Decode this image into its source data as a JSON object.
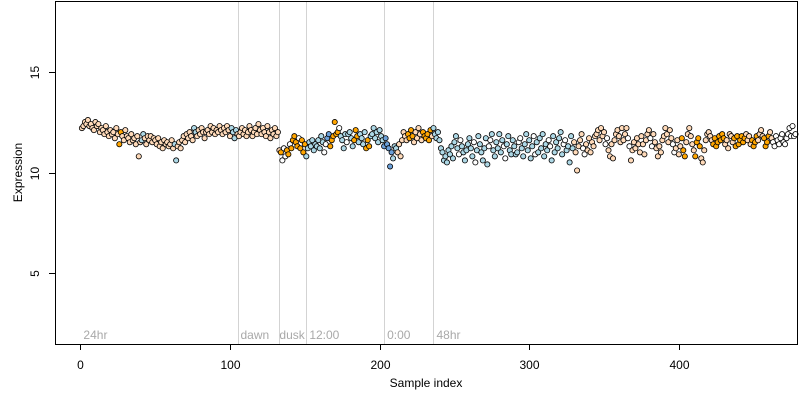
{
  "chart_data": {
    "type": "scatter",
    "title": "",
    "xlabel": "Sample index",
    "ylabel": "Expression",
    "xlim": [
      -17,
      479
    ],
    "ylim": [
      1.5,
      18.5
    ],
    "x_ticks": [
      0,
      100,
      200,
      300,
      400
    ],
    "y_ticks": [
      5,
      10,
      15
    ],
    "grid": false,
    "legend": "none",
    "colors": {
      "frame": "#000000",
      "marker_edge": "#000000",
      "boundary_line": "#d3d3d3",
      "region_label": "#a9a9a9",
      "peach": "#ffdab9",
      "orange": "#ffa500",
      "light_blue": "#add8e6",
      "steel_blue": "#6a9fd8",
      "white": "#ffffff"
    },
    "boundaries": [
      105,
      133,
      151,
      203,
      236
    ],
    "region_labels": [
      {
        "text": "24hr",
        "x": 2
      },
      {
        "text": "dawn",
        "x": 107
      },
      {
        "text": "dusk",
        "x": 133
      },
      {
        "text": "12:00",
        "x": 153
      },
      {
        "text": "0:00",
        "x": 205
      },
      {
        "text": "48hr",
        "x": 238
      }
    ],
    "points": {
      "x_start": 1,
      "x_step": 1,
      "y": [
        12.2,
        12.3,
        12.5,
        12.4,
        12.6,
        12.3,
        12.4,
        12.2,
        12.1,
        12.5,
        12.3,
        12.4,
        12.0,
        12.2,
        12.1,
        11.9,
        12.3,
        12.0,
        11.8,
        12.1,
        11.9,
        12.0,
        11.7,
        12.2,
        11.9,
        11.4,
        12.0,
        11.8,
        11.6,
        12.1,
        11.8,
        11.7,
        11.5,
        11.9,
        11.6,
        11.7,
        11.4,
        11.8,
        10.8,
        11.5,
        11.6,
        11.9,
        11.7,
        11.4,
        11.8,
        11.6,
        11.8,
        11.5,
        11.7,
        11.6,
        11.4,
        11.7,
        11.3,
        11.5,
        11.2,
        11.6,
        11.4,
        11.5,
        11.3,
        11.4,
        11.6,
        11.2,
        11.4,
        10.6,
        11.3,
        11.5,
        11.2,
        11.6,
        11.8,
        11.5,
        11.9,
        11.7,
        12.0,
        11.8,
        11.6,
        12.2,
        12.0,
        11.8,
        12.1,
        11.9,
        12.2,
        12.0,
        11.7,
        12.0,
        12.1,
        11.9,
        12.3,
        12.0,
        12.2,
        11.9,
        12.1,
        12.0,
        12.3,
        12.1,
        11.9,
        12.2,
        12.0,
        12.3,
        12.1,
        11.8,
        12.2,
        12.0,
        11.7,
        12.1,
        11.9,
        11.8,
        12.0,
        12.2,
        11.9,
        12.1,
        11.8,
        12.0,
        12.3,
        12.1,
        11.8,
        12.0,
        12.2,
        11.9,
        12.4,
        12.1,
        11.9,
        12.2,
        12.0,
        11.8,
        12.3,
        12.0,
        11.7,
        12.1,
        11.9,
        12.2,
        11.8,
        12.0,
        11.1,
        11.0,
        10.6,
        11.2,
        10.8,
        11.1,
        10.9,
        11.4,
        11.2,
        11.6,
        11.8,
        11.5,
        11.3,
        11.7,
        11.2,
        11.6,
        11.0,
        11.4,
        10.8,
        11.2,
        11.5,
        11.3,
        11.6,
        11.1,
        11.4,
        11.3,
        11.6,
        11.2,
        11.8,
        11.5,
        11.0,
        11.4,
        11.7,
        11.9,
        11.3,
        11.6,
        11.8,
        12.5,
        11.9,
        12.0,
        12.2,
        11.8,
        11.6,
        11.2,
        11.9,
        11.5,
        11.9,
        12.0,
        11.7,
        11.3,
        11.6,
        12.1,
        11.8,
        11.5,
        11.9,
        11.7,
        11.4,
        12.0,
        11.2,
        11.6,
        11.3,
        11.8,
        11.9,
        12.2,
        11.7,
        12.0,
        11.5,
        12.1,
        11.8,
        11.6,
        11.3,
        11.7,
        11.4,
        11.2,
        10.3,
        11.0,
        10.7,
        11.3,
        11.2,
        11.0,
        11.4,
        10.8,
        11.6,
        12.0,
        11.8,
        11.6,
        11.9,
        11.7,
        12.1,
        11.8,
        11.5,
        12.0,
        11.7,
        12.2,
        11.9,
        11.6,
        12.0,
        11.8,
        11.7,
        11.9,
        11.6,
        12.1,
        11.8,
        12.2,
        11.9,
        11.7,
        12.0,
        11.6,
        11.2,
        11.0,
        10.6,
        10.8,
        10.5,
        11.1,
        10.9,
        11.3,
        10.7,
        11.5,
        11.8,
        11.2,
        10.9,
        11.6,
        11.3,
        11.0,
        10.6,
        11.1,
        11.4,
        11.7,
        11.2,
        10.8,
        11.5,
        10.5,
        11.1,
        11.8,
        11.4,
        11.0,
        10.6,
        11.2,
        11.7,
        10.4,
        11.3,
        11.6,
        11.9,
        11.1,
        10.8,
        11.5,
        11.2,
        11.9,
        11.0,
        11.6,
        11.3,
        10.7,
        11.4,
        11.8,
        11.1,
        10.9,
        11.6,
        11.3,
        10.9,
        11.0,
        11.5,
        11.7,
        11.2,
        10.8,
        11.4,
        11.9,
        11.1,
        11.6,
        10.7,
        11.3,
        11.8,
        10.9,
        11.5,
        11.0,
        11.7,
        11.2,
        11.9,
        10.8,
        11.4,
        11.1,
        11.6,
        11.3,
        10.6,
        11.8,
        11.0,
        11.5,
        11.2,
        11.7,
        12.0,
        10.9,
        11.4,
        11.6,
        11.1,
        11.3,
        10.5,
        11.8,
        11.2,
        11.5,
        11.0,
        10.1,
        11.3,
        11.6,
        11.9,
        11.2,
        10.9,
        11.4,
        11.1,
        11.7,
        11.0,
        11.5,
        11.3,
        11.8,
        11.9,
        12.1,
        11.6,
        12.2,
        11.8,
        12.0,
        11.4,
        11.7,
        11.1,
        10.8,
        11.4,
        10.7,
        11.6,
        11.9,
        12.1,
        11.8,
        11.5,
        12.2,
        11.6,
        11.9,
        12.2,
        11.7,
        11.3,
        10.6,
        11.1,
        11.5,
        11.2,
        11.7,
        11.4,
        11.0,
        11.8,
        11.4,
        10.9,
        11.6,
        11.9,
        12.1,
        11.7,
        11.3,
        11.9,
        11.5,
        11.2,
        10.8,
        11.3,
        11.0,
        11.6,
        11.8,
        12.2,
        11.9,
        11.5,
        12.1,
        11.7,
        11.4,
        11.0,
        11.2,
        11.6,
        10.9,
        11.3,
        11.7,
        11.1,
        10.8,
        11.5,
        11.9,
        12.2,
        11.8,
        11.4,
        11.1,
        10.8,
        11.5,
        11.7,
        11.3,
        10.7,
        10.5,
        11.1,
        11.6,
        11.9,
        12.0,
        11.8,
        11.6,
        11.4,
        11.7,
        11.3,
        11.5,
        11.8,
        11.6,
        11.9,
        11.7,
        11.4,
        11.6,
        11.2,
        11.9,
        11.8,
        11.5,
        11.7,
        11.3,
        11.8,
        11.4,
        11.6,
        11.8,
        11.5,
        11.7,
        11.9,
        11.6,
        11.8,
        11.4,
        11.6,
        11.3,
        11.5,
        11.8,
        11.6,
        11.9,
        12.1,
        11.8,
        11.7,
        11.3,
        11.5,
        11.8,
        12.0,
        11.7,
        11.5,
        11.3,
        11.8,
        11.6,
        11.4,
        11.7,
        11.9,
        11.5,
        11.4,
        11.7,
        11.9,
        12.2,
        11.8,
        12.3,
        11.8,
        11.9
      ],
      "fill_runs": [
        [
          "peach",
          1,
          25
        ],
        [
          "orange",
          26,
          27
        ],
        [
          "peach",
          28,
          40
        ],
        [
          "light_blue",
          41,
          42
        ],
        [
          "peach",
          43,
          62
        ],
        [
          "light_blue",
          63,
          64
        ],
        [
          "peach",
          65,
          75
        ],
        [
          "light_blue",
          76,
          77
        ],
        [
          "peach",
          78,
          100
        ],
        [
          "light_blue",
          101,
          104
        ],
        [
          "peach",
          105,
          133
        ],
        [
          "orange",
          134,
          134
        ],
        [
          "white",
          135,
          137
        ],
        [
          "orange",
          138,
          139
        ],
        [
          "white",
          140,
          140
        ],
        [
          "orange",
          141,
          145
        ],
        [
          "white",
          146,
          146
        ],
        [
          "orange",
          147,
          150
        ],
        [
          "light_blue",
          151,
          162
        ],
        [
          "white",
          163,
          164
        ],
        [
          "steel_blue",
          165,
          166
        ],
        [
          "orange",
          167,
          172
        ],
        [
          "white",
          173,
          173
        ],
        [
          "light_blue",
          174,
          177
        ],
        [
          "white",
          178,
          178
        ],
        [
          "light_blue",
          179,
          182
        ],
        [
          "orange",
          183,
          185
        ],
        [
          "light_blue",
          186,
          190
        ],
        [
          "orange",
          191,
          193
        ],
        [
          "light_blue",
          194,
          202
        ],
        [
          "steel_blue",
          203,
          208
        ],
        [
          "light_blue",
          209,
          211
        ],
        [
          "peach",
          212,
          218
        ],
        [
          "orange",
          219,
          222
        ],
        [
          "peach",
          223,
          228
        ],
        [
          "orange",
          229,
          234
        ],
        [
          "peach",
          235,
          235
        ],
        [
          "light_blue",
          236,
          252
        ],
        [
          "white",
          253,
          254
        ],
        [
          "light_blue",
          255,
          262
        ],
        [
          "white",
          263,
          264
        ],
        [
          "light_blue",
          265,
          272
        ],
        [
          "white",
          273,
          274
        ],
        [
          "light_blue",
          275,
          282
        ],
        [
          "white",
          283,
          284
        ],
        [
          "light_blue",
          285,
          292
        ],
        [
          "white",
          293,
          294
        ],
        [
          "light_blue",
          295,
          302
        ],
        [
          "white",
          303,
          304
        ],
        [
          "light_blue",
          305,
          312
        ],
        [
          "white",
          313,
          314
        ],
        [
          "light_blue",
          315,
          322
        ],
        [
          "white",
          323,
          324
        ],
        [
          "light_blue",
          325,
          329
        ],
        [
          "peach",
          330,
          335
        ],
        [
          "white",
          336,
          337
        ],
        [
          "peach",
          338,
          350
        ],
        [
          "white",
          351,
          352
        ],
        [
          "peach",
          353,
          365
        ],
        [
          "white",
          366,
          367
        ],
        [
          "peach",
          368,
          380
        ],
        [
          "white",
          381,
          382
        ],
        [
          "peach",
          383,
          395
        ],
        [
          "white",
          396,
          397
        ],
        [
          "peach",
          398,
          401
        ],
        [
          "orange",
          402,
          404
        ],
        [
          "peach",
          405,
          410
        ],
        [
          "orange",
          411,
          414
        ],
        [
          "peach",
          415,
          422
        ],
        [
          "orange",
          423,
          430
        ],
        [
          "peach",
          431,
          436
        ],
        [
          "orange",
          437,
          444
        ],
        [
          "peach",
          445,
          448
        ],
        [
          "orange",
          449,
          452
        ],
        [
          "peach",
          453,
          456
        ],
        [
          "orange",
          457,
          460
        ],
        [
          "peach",
          461,
          462
        ]
      ]
    }
  }
}
